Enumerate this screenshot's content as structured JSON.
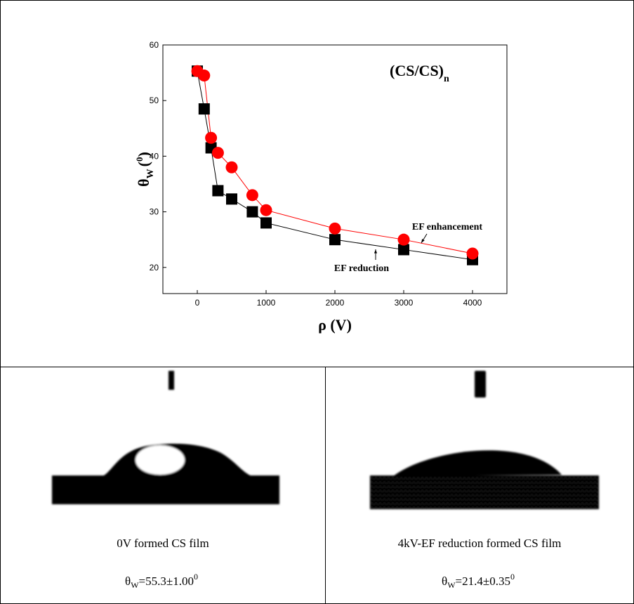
{
  "chart_data": {
    "type": "line",
    "annotation": {
      "text": "(CS/CS)",
      "sub": "n"
    },
    "xlabel": "ρ (V)",
    "ylabel": {
      "symbol": "θ",
      "sub": "W",
      "open": "(",
      "sup": "0",
      "close": ")"
    },
    "x": [
      0,
      100,
      200,
      300,
      500,
      800,
      1000,
      2000,
      3000,
      4000
    ],
    "series": [
      {
        "name": "EF reduction",
        "color": "#000000",
        "marker": "square",
        "values": [
          55.3,
          48.5,
          41.5,
          33.8,
          32.3,
          30,
          28,
          25,
          23.2,
          21.4
        ]
      },
      {
        "name": "EF enhancement",
        "color": "#ff0000",
        "marker": "circle",
        "values": [
          55.3,
          54.5,
          43.3,
          40.6,
          38,
          33,
          30.3,
          27,
          25,
          22.5
        ]
      }
    ],
    "xlim": [
      -500,
      4500
    ],
    "xticks": [
      0,
      1000,
      2000,
      3000,
      4000
    ],
    "ylim": [
      15.3,
      60
    ],
    "yticks": [
      20,
      30,
      40,
      50,
      60
    ]
  },
  "panels": [
    {
      "caption": "0V formed CS film",
      "measurement": {
        "symbol": "θ",
        "sub": "W",
        "text": "=55.3±1.00",
        "sup": "0"
      }
    },
    {
      "caption": "4kV-EF reduction formed CS film",
      "measurement": {
        "symbol": "θ",
        "sub": "W",
        "text": "=21.4±0.35",
        "sup": "0"
      }
    }
  ]
}
